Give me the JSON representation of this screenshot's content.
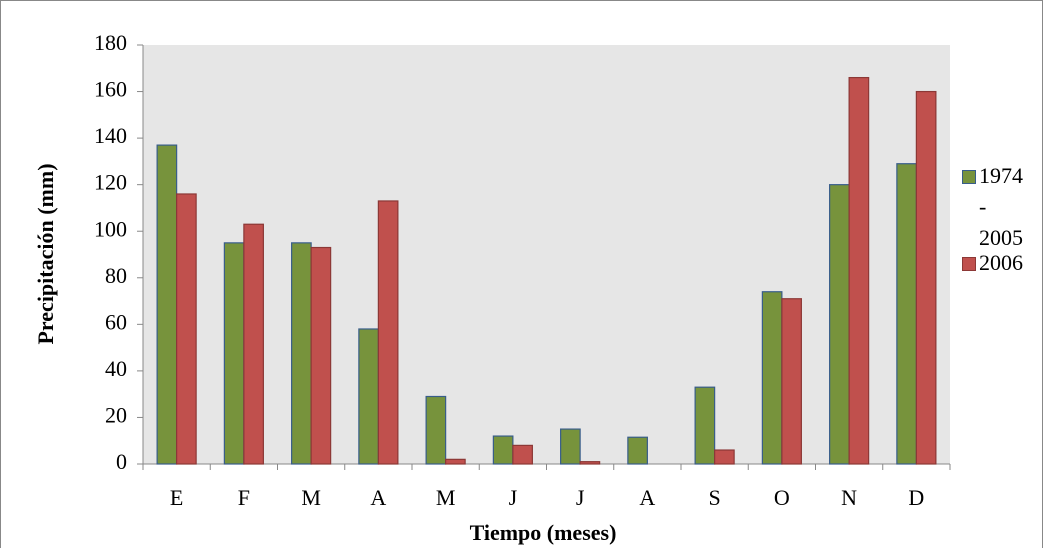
{
  "chart_data": {
    "type": "bar",
    "x_label": "Tiempo (meses)",
    "y_label": "Precipitación (mm)",
    "categories": [
      "E",
      "F",
      "M",
      "A",
      "M",
      "J",
      "J",
      "A",
      "S",
      "O",
      "N",
      "D"
    ],
    "series": [
      {
        "name": "1974 - 2005",
        "color": "#77933c",
        "edge": "#385d8a",
        "values": [
          137,
          95,
          95,
          58,
          29,
          12,
          15,
          11.5,
          33,
          74,
          120,
          129
        ]
      },
      {
        "name": "2006",
        "color": "#c0504d",
        "edge": "#8c3836",
        "values": [
          116,
          103,
          93,
          113,
          2,
          8,
          1,
          0,
          6,
          71,
          166,
          160
        ]
      }
    ],
    "ylim": [
      0,
      180
    ],
    "yticks": [
      0,
      20,
      40,
      60,
      80,
      100,
      120,
      140,
      160,
      180
    ],
    "grid": false,
    "legend": "right"
  }
}
